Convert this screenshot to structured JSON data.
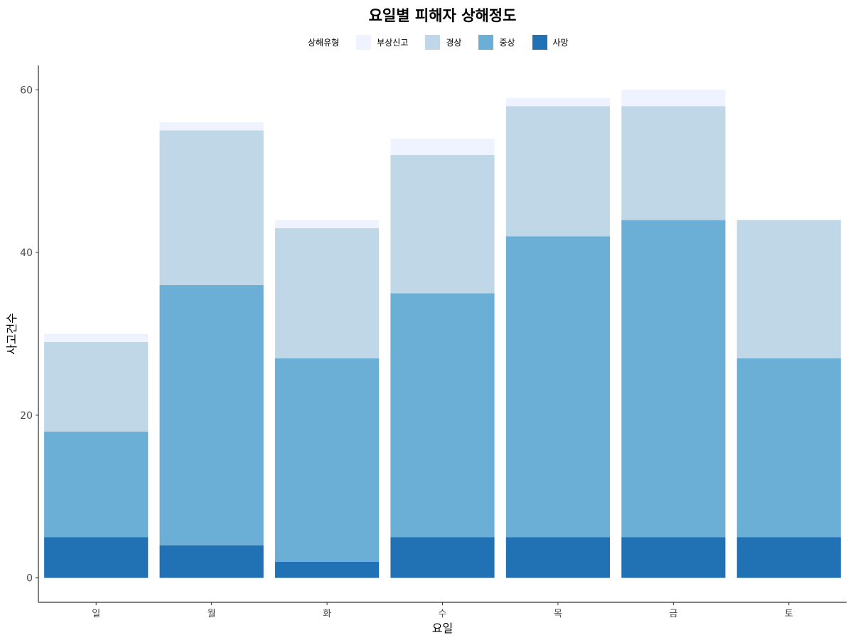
{
  "chart_data": {
    "type": "bar",
    "stacked": true,
    "title": "요일별 피해자 상해정도",
    "xlabel": "요일",
    "ylabel": "사고건수",
    "categories": [
      "일",
      "월",
      "화",
      "수",
      "목",
      "금",
      "토"
    ],
    "ylim": [
      -3,
      63
    ],
    "yticks": [
      0,
      20,
      40,
      60
    ],
    "legend": {
      "title": "상해유형",
      "position": "top"
    },
    "series": [
      {
        "name": "사망",
        "color": "#2171b5",
        "values": [
          5,
          4,
          2,
          5,
          5,
          5,
          5
        ]
      },
      {
        "name": "중상",
        "color": "#6baed6",
        "values": [
          13,
          32,
          25,
          30,
          37,
          39,
          22
        ]
      },
      {
        "name": "경상",
        "color": "#bfd7e6",
        "values": [
          11,
          19,
          16,
          17,
          16,
          14,
          17
        ]
      },
      {
        "name": "부상신고",
        "color": "#eff3ff",
        "values": [
          1,
          1,
          1,
          2,
          1,
          2,
          0
        ]
      }
    ],
    "legend_order": [
      "부상신고",
      "경상",
      "중상",
      "사망"
    ],
    "grid": false
  }
}
